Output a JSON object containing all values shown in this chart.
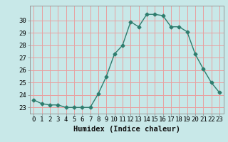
{
  "x": [
    0,
    1,
    2,
    3,
    4,
    5,
    6,
    7,
    8,
    9,
    10,
    11,
    12,
    13,
    14,
    15,
    16,
    17,
    18,
    19,
    20,
    21,
    22,
    23
  ],
  "y": [
    23.6,
    23.3,
    23.2,
    23.2,
    23.0,
    23.0,
    23.0,
    23.0,
    24.1,
    25.5,
    27.3,
    28.0,
    29.9,
    29.5,
    30.5,
    30.5,
    30.4,
    29.5,
    29.5,
    29.1,
    27.3,
    26.1,
    25.0,
    24.2
  ],
  "line_color": "#2e7d6e",
  "marker": "D",
  "marker_size": 2.5,
  "bg_color": "#c8e8e8",
  "grid_h_color": "#e8a0a0",
  "grid_v_color": "#e8a0a0",
  "xlabel": "Humidex (Indice chaleur)",
  "ylim": [
    22.5,
    31.2
  ],
  "yticks": [
    23,
    24,
    25,
    26,
    27,
    28,
    29,
    30
  ],
  "xticks": [
    0,
    1,
    2,
    3,
    4,
    5,
    6,
    7,
    8,
    9,
    10,
    11,
    12,
    13,
    14,
    15,
    16,
    17,
    18,
    19,
    20,
    21,
    22,
    23
  ],
  "xlim": [
    -0.5,
    23.5
  ],
  "xlabel_fontsize": 7.5,
  "tick_fontsize": 6.5,
  "line_width": 1.0
}
